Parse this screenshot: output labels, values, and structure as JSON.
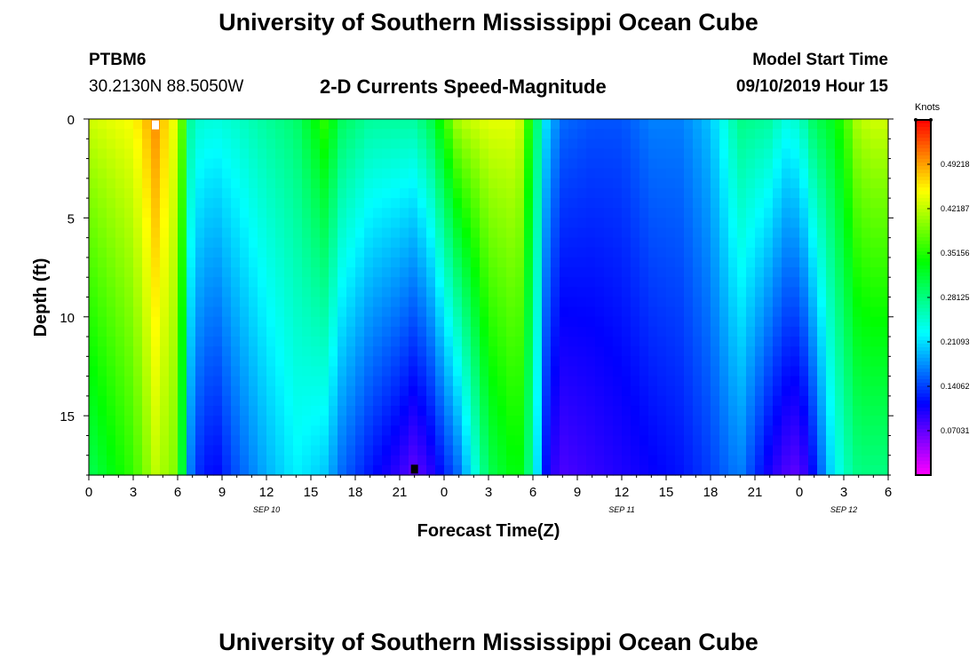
{
  "header": {
    "title": "University of Southern Mississippi Ocean Cube",
    "station": "PTBM6",
    "coords": "30.2130N 88.5050W",
    "subtitle": "2-D Currents Speed-Magnitude",
    "model_start_label": "Model Start Time",
    "model_start_value": "09/10/2019 Hour 15"
  },
  "footer": {
    "title": "University of Southern Mississippi Ocean Cube"
  },
  "chart_data": {
    "type": "heatmap",
    "title": "2-D Currents Speed-Magnitude",
    "xlabel": "Forecast Time(Z)",
    "ylabel": "Depth (ft)",
    "x_range_hours": [
      0,
      54
    ],
    "x_tick_labels": [
      "0",
      "3",
      "6",
      "9",
      "12",
      "15",
      "18",
      "21",
      "0",
      "3",
      "6",
      "9",
      "12",
      "15",
      "18",
      "21",
      "0",
      "3",
      "6"
    ],
    "x_date_labels": [
      {
        "label": "SEP 10",
        "at_hour": 12
      },
      {
        "label": "SEP 11",
        "at_hour": 36
      },
      {
        "label": "SEP 12",
        "at_hour": 51
      }
    ],
    "y_range_ft": [
      0,
      18
    ],
    "y_reversed": true,
    "y_ticks": [
      0,
      5,
      10,
      15
    ],
    "colorbar": {
      "label": "Knots",
      "range": [
        0,
        0.5624
      ],
      "tick_values": [
        0.49218,
        0.42187,
        0.35156,
        0.28125,
        0.21093,
        0.14062,
        0.07031
      ],
      "tick_labels": [
        "0.49218",
        "0.42187",
        "0.35156",
        "0.28125",
        "0.21093",
        "0.14062",
        "0.07031"
      ],
      "colormap": "rainbow (magenta-blue-cyan-green-yellow-orange-red)"
    },
    "speed_profile_knots": {
      "hours": [
        0,
        3,
        4.5,
        6,
        7,
        8.5,
        10,
        12,
        14,
        16,
        17,
        19,
        21,
        22,
        23,
        25,
        27,
        29,
        30,
        31,
        32,
        34,
        36,
        38,
        40,
        42,
        44,
        46,
        47,
        48,
        49,
        50,
        51,
        52,
        53,
        54
      ],
      "surface": [
        0.43,
        0.45,
        0.5,
        0.43,
        0.25,
        0.24,
        0.25,
        0.27,
        0.29,
        0.36,
        0.3,
        0.27,
        0.27,
        0.27,
        0.3,
        0.42,
        0.44,
        0.44,
        0.32,
        0.2,
        0.16,
        0.15,
        0.15,
        0.17,
        0.17,
        0.2,
        0.28,
        0.27,
        0.24,
        0.25,
        0.3,
        0.32,
        0.36,
        0.42,
        0.43,
        0.43
      ],
      "bottom": [
        0.3,
        0.36,
        0.42,
        0.39,
        0.14,
        0.11,
        0.15,
        0.19,
        0.22,
        0.2,
        0.16,
        0.12,
        0.09,
        0.07,
        0.09,
        0.16,
        0.3,
        0.34,
        0.26,
        0.1,
        0.08,
        0.09,
        0.1,
        0.11,
        0.12,
        0.14,
        0.17,
        0.1,
        0.08,
        0.07,
        0.12,
        0.2,
        0.25,
        0.28,
        0.28,
        0.28
      ]
    },
    "markers": [
      {
        "hour": 4.5,
        "depth_ft": 0.3,
        "color": "#ffffff"
      },
      {
        "hour": 22.0,
        "depth_ft": 17.7,
        "color": "#000000"
      }
    ]
  }
}
